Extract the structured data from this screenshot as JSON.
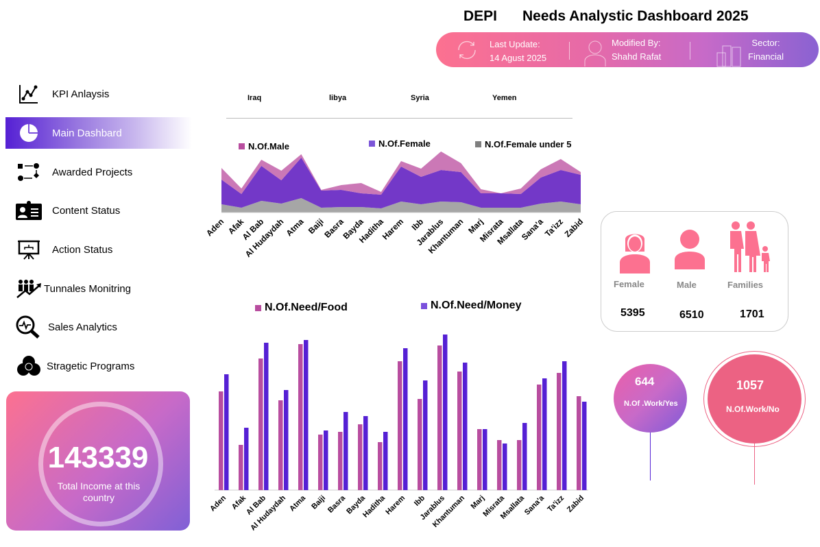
{
  "header": {
    "brand": "DEPI",
    "title": "Needs Analystic Dashboard 2025",
    "last_update_label": "Last Update:",
    "last_update_value": "14 Agust 2025",
    "modified_by_label": "Modified By:",
    "modified_by_value": "Shahd Rafat",
    "sector_label": "Sector:",
    "sector_value": "Financial"
  },
  "sidebar": {
    "items": [
      {
        "label": "KPI Anlaysis",
        "icon": "line-chart-icon"
      },
      {
        "label": "Main Dashbard",
        "icon": "pie-chart-icon",
        "active": true
      },
      {
        "label": "Awarded Projects",
        "icon": "workflow-icon"
      },
      {
        "label": "Content Status",
        "icon": "id-card-icon"
      },
      {
        "label": "Action Status",
        "icon": "presentation-board-icon"
      },
      {
        "label": "Tunnales Monitring",
        "icon": "people-growth-icon"
      },
      {
        "label": "Sales Analytics",
        "icon": "magnifier-pulse-icon"
      },
      {
        "label": "Stragetic Programs",
        "icon": "venn-icon"
      }
    ]
  },
  "income": {
    "value": "143339",
    "label": "Total Income at this country"
  },
  "slicer": {
    "items": [
      "Iraq",
      "libya",
      "Syria",
      "Yemen"
    ]
  },
  "stats": {
    "female_label": "Female",
    "female_value": "5395",
    "male_label": "Male",
    "male_value": "6510",
    "families_label": "Families",
    "families_value": "1701",
    "work_yes_value": "644",
    "work_yes_label": "N.Of .Work/Yes",
    "work_no_value": "1057",
    "work_no_label": "N.Of.Work/No"
  },
  "colors": {
    "pink": "#fc7190",
    "purple": "#5520d4",
    "magenta": "#b84d9f",
    "accent_pink": "#ec6283"
  },
  "chart_data": [
    {
      "type": "area",
      "stacked": true,
      "legend_position": "top",
      "grid": false,
      "categories": [
        "Aden",
        "Afak",
        "Al Bab",
        "Al Hudaydah",
        "Atma",
        "Baiji",
        "Basra",
        "Bayda",
        "Haditha",
        "Harem",
        "Ibb",
        "Jarablus",
        "Khantuman",
        "Marj",
        "Misrata",
        "Msallata",
        "Sana'a",
        "Ta'izz",
        "Zabid"
      ],
      "series": [
        {
          "name": "N.Of.Female under 5",
          "color": "#a6a6a6",
          "values": [
            12,
            7,
            17,
            13,
            21,
            7,
            8,
            8,
            6,
            16,
            12,
            16,
            15,
            7,
            7,
            7,
            13,
            16,
            12
          ]
        },
        {
          "name": "N.Of.Female",
          "color": "#7338c8",
          "values": [
            36,
            20,
            51,
            34,
            59,
            25,
            25,
            20,
            20,
            51,
            40,
            46,
            44,
            21,
            21,
            20,
            38,
            46,
            43
          ]
        },
        {
          "name": "N.Of.Male",
          "color": "#cb78b6",
          "values": [
            17,
            8,
            9,
            14,
            5,
            1,
            7,
            15,
            4,
            8,
            12,
            27,
            13,
            6,
            0,
            8,
            12,
            16,
            4
          ]
        }
      ],
      "ylim": [
        0,
        90
      ]
    },
    {
      "type": "bar",
      "legend_position": "top",
      "grid": false,
      "categories": [
        "Aden",
        "Afak",
        "Al Bab",
        "Al Hudaydah",
        "Atma",
        "Baiji",
        "Basra",
        "Bayda",
        "Haditha",
        "Harem",
        "Ibb",
        "Jarablus",
        "Khantuman",
        "Marj",
        "Misrata",
        "Msallata",
        "Sana'a",
        "Ta'izz",
        "Zabid"
      ],
      "series": [
        {
          "name": "N.Of.Need/Food",
          "color": "#b84d9f",
          "values": [
            144,
            66,
            192,
            131,
            213,
            81,
            85,
            96,
            70,
            188,
            133,
            211,
            173,
            89,
            73,
            73,
            154,
            171,
            137
          ]
        },
        {
          "name": "N.Of.Need/Money",
          "color": "#5520d4",
          "values": [
            169,
            91,
            215,
            146,
            219,
            87,
            114,
            108,
            85,
            207,
            160,
            227,
            186,
            89,
            68,
            98,
            163,
            188,
            129
          ]
        }
      ],
      "ylim": [
        0,
        240
      ]
    }
  ]
}
